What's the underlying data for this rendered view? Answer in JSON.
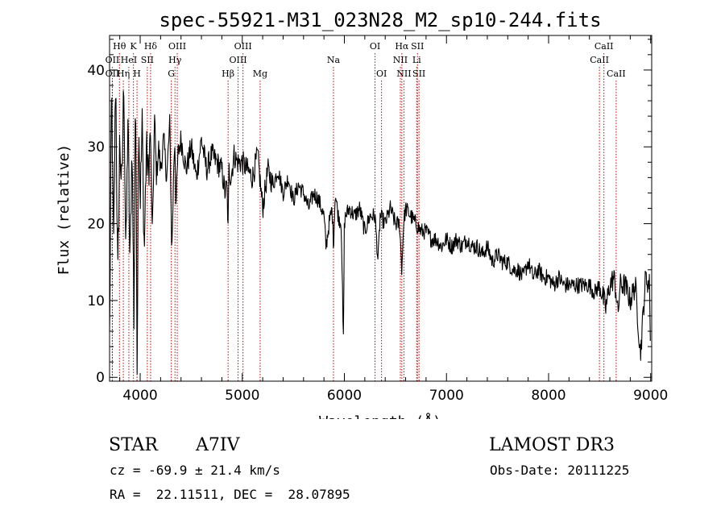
{
  "chart_data": {
    "type": "line",
    "title": "spec-55921-M31_023N28_M2_sp10-244.fits",
    "xlabel": "Wavelength (Å)",
    "ylabel": "Flux (relative)",
    "xlim": [
      3700,
      9010
    ],
    "ylim": [
      -0.5,
      44.5
    ],
    "x_ticks": [
      4000,
      5000,
      6000,
      7000,
      8000,
      9000
    ],
    "x_tick_labels": [
      "4000",
      "5000",
      "6000",
      "7000",
      "8000",
      "9000"
    ],
    "y_ticks": [
      0,
      10,
      20,
      30,
      40
    ],
    "y_tick_labels": [
      "0",
      "10",
      "20",
      "30",
      "40"
    ],
    "grid": false,
    "series": [
      {
        "name": "spectrum",
        "x": [
          3700,
          3720,
          3740,
          3760,
          3780,
          3800,
          3820,
          3840,
          3860,
          3880,
          3900,
          3920,
          3940,
          3950,
          3960,
          3970,
          3985,
          4000,
          4020,
          4040,
          4060,
          4080,
          4100,
          4120,
          4140,
          4160,
          4180,
          4200,
          4230,
          4260,
          4290,
          4310,
          4330,
          4340,
          4350,
          4370,
          4400,
          4450,
          4500,
          4550,
          4600,
          4650,
          4700,
          4750,
          4800,
          4830,
          4850,
          4861,
          4870,
          4890,
          4920,
          4950,
          5000,
          5050,
          5100,
          5150,
          5200,
          5250,
          5300,
          5350,
          5400,
          5450,
          5500,
          5550,
          5600,
          5650,
          5700,
          5750,
          5800,
          5820,
          5850,
          5880,
          5893,
          5910,
          5940,
          5970,
          5990,
          6000,
          6010,
          6050,
          6100,
          6150,
          6200,
          6250,
          6300,
          6330,
          6350,
          6400,
          6450,
          6500,
          6540,
          6563,
          6580,
          6600,
          6650,
          6700,
          6750,
          6800,
          6850,
          6900,
          6950,
          7000,
          7050,
          7100,
          7150,
          7200,
          7250,
          7300,
          7350,
          7400,
          7450,
          7500,
          7550,
          7600,
          7650,
          7700,
          7750,
          7800,
          7850,
          7900,
          7950,
          8000,
          8050,
          8100,
          8150,
          8200,
          8250,
          8300,
          8350,
          8400,
          8450,
          8500,
          8542,
          8560,
          8600,
          8640,
          8662,
          8680,
          8700,
          8750,
          8800,
          8850,
          8900,
          8950,
          8990,
          9000
        ],
        "y": [
          5,
          38,
          16,
          40,
          12,
          31,
          24,
          39,
          15,
          34,
          14,
          31,
          6,
          36,
          27,
          2,
          35,
          23,
          33,
          16,
          30,
          26,
          32,
          18,
          34,
          26,
          30,
          27,
          31,
          26,
          33,
          16,
          28,
          31,
          22,
          29,
          31,
          27,
          30,
          26,
          31,
          27,
          29,
          28,
          27,
          24,
          25,
          19,
          27,
          26,
          29,
          28,
          28,
          27,
          26,
          29,
          22,
          27,
          25,
          27,
          24,
          26,
          23,
          25,
          24,
          22,
          24,
          23,
          21,
          17,
          20,
          22,
          17,
          24,
          21,
          20,
          4,
          20,
          21,
          22,
          21,
          22,
          19,
          21,
          21,
          15,
          21,
          20,
          22,
          20,
          20,
          14,
          20,
          22,
          21,
          20,
          19,
          19,
          18,
          18,
          17,
          18,
          17,
          18,
          17,
          18,
          17,
          17,
          16,
          17,
          15,
          16,
          15,
          15,
          14,
          14,
          13,
          15,
          13,
          14,
          13,
          13,
          12,
          13,
          12,
          12,
          12,
          12,
          12,
          12,
          11,
          12,
          10,
          9,
          12,
          13,
          11,
          8,
          12,
          12,
          10,
          12,
          3,
          13,
          12,
          2
        ]
      }
    ],
    "line_markers": [
      {
        "name": "OII",
        "wavelength": 3727,
        "row": 2
      },
      {
        "name": "Hθ",
        "wavelength": 3797,
        "row": 1
      },
      {
        "name": "OII",
        "wavelength": 3727,
        "row": 3
      },
      {
        "name": "Hη",
        "wavelength": 3835,
        "row": 3
      },
      {
        "name": "HeI",
        "wavelength": 3889,
        "row": 2
      },
      {
        "name": "K",
        "wavelength": 3934,
        "row": 1
      },
      {
        "name": "H",
        "wavelength": 3969,
        "row": 3
      },
      {
        "name": "SII",
        "wavelength": 4070,
        "row": 2
      },
      {
        "name": "Hδ",
        "wavelength": 4102,
        "row": 1
      },
      {
        "name": "G",
        "wavelength": 4305,
        "row": 3
      },
      {
        "name": "Hγ",
        "wavelength": 4341,
        "row": 2
      },
      {
        "name": "OIII",
        "wavelength": 4363,
        "row": 1
      },
      {
        "name": "Hβ",
        "wavelength": 4861,
        "row": 3
      },
      {
        "name": "OIII",
        "wavelength": 4959,
        "row": 2
      },
      {
        "name": "OIII",
        "wavelength": 5007,
        "row": 1
      },
      {
        "name": "Mg",
        "wavelength": 5175,
        "row": 3
      },
      {
        "name": "Na",
        "wavelength": 5893,
        "row": 2
      },
      {
        "name": "OI",
        "wavelength": 6300,
        "row": 1
      },
      {
        "name": "OI",
        "wavelength": 6364,
        "row": 3
      },
      {
        "name": "NII",
        "wavelength": 6548,
        "row": 2
      },
      {
        "name": "Hα",
        "wavelength": 6563,
        "row": 1
      },
      {
        "name": "NII",
        "wavelength": 6583,
        "row": 3
      },
      {
        "name": "Li",
        "wavelength": 6708,
        "row": 2
      },
      {
        "name": "SII",
        "wavelength": 6716,
        "row": 1
      },
      {
        "name": "SII",
        "wavelength": 6731,
        "row": 3
      },
      {
        "name": "CaII",
        "wavelength": 8498,
        "row": 2
      },
      {
        "name": "CaII",
        "wavelength": 8542,
        "row": 1
      },
      {
        "name": "CaII",
        "wavelength": 8662,
        "row": 3
      }
    ]
  },
  "info": {
    "object_class": "STAR",
    "subclass": "A7IV",
    "survey": "LAMOST DR3",
    "cz": "cz = -69.9 ± 21.4 km/s",
    "obs_date": "Obs-Date: 20111225",
    "coords": "RA =  22.11511, DEC =  28.07895"
  },
  "colors": {
    "spectrum": "#000000",
    "marker": "#cc0000",
    "axes": "#000000"
  }
}
